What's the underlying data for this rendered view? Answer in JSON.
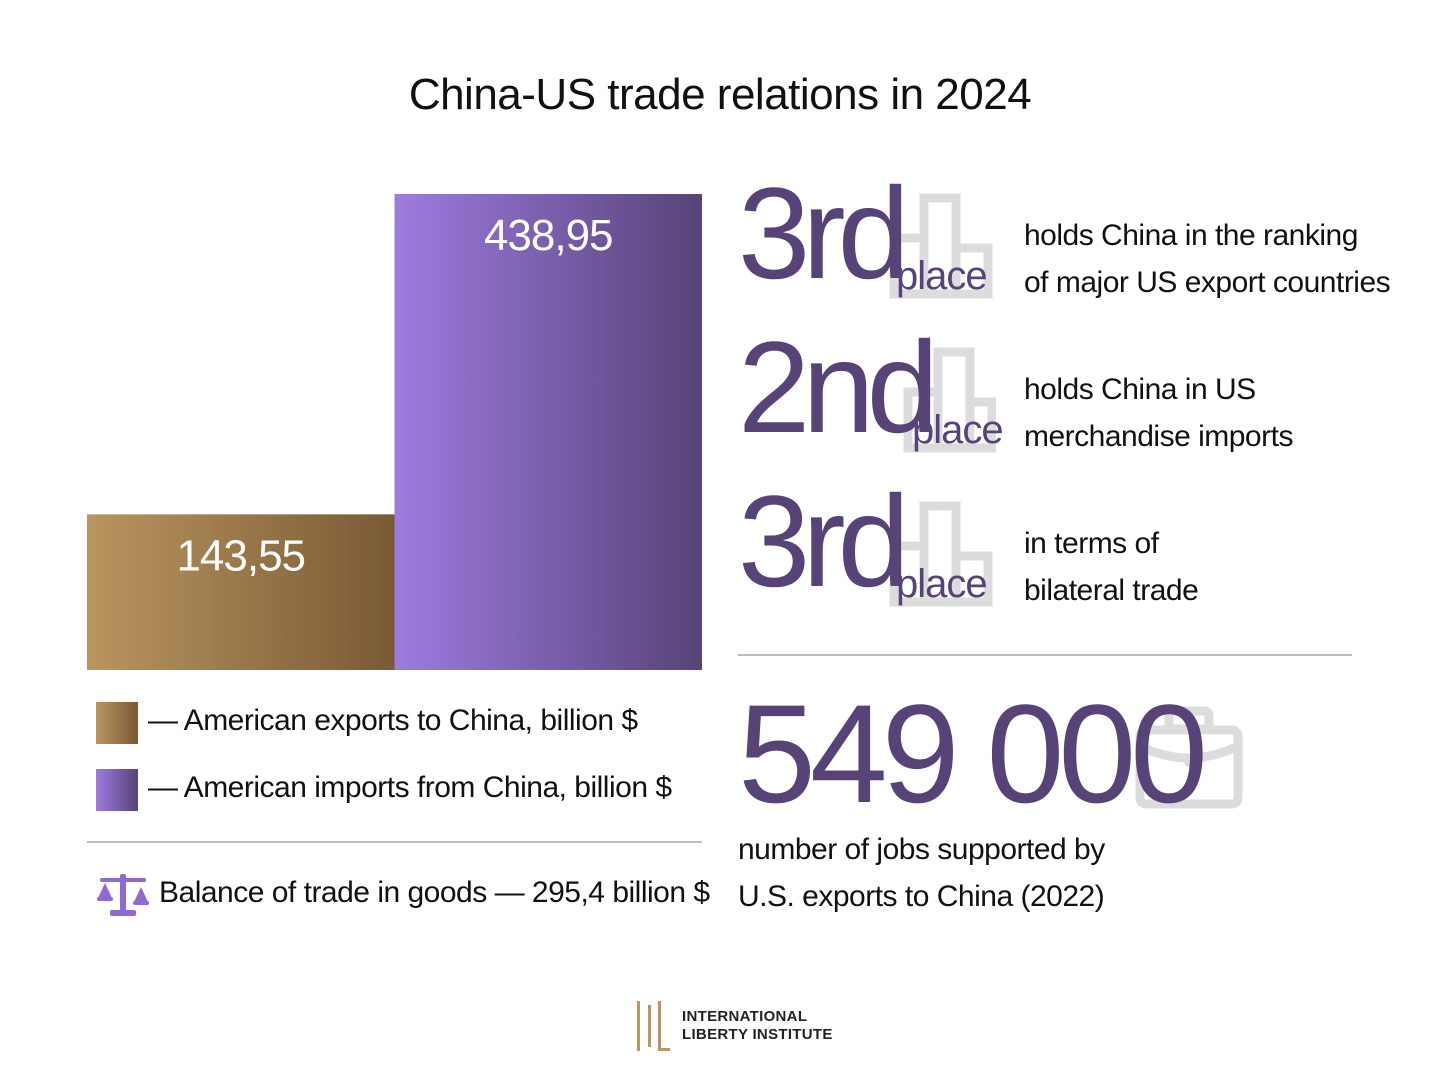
{
  "title": "China-US trade relations in 2024",
  "chart_data": {
    "type": "bar",
    "categories": [
      "American exports to China",
      "American imports from China"
    ],
    "values": [
      143.55,
      438.95
    ],
    "value_labels": [
      "143,55",
      "438,95"
    ],
    "series_colors": [
      [
        "#b9955f",
        "#7a5a35"
      ],
      [
        "#9d7be0",
        "#574378"
      ]
    ],
    "ylim": [
      0,
      438.95
    ],
    "legend": [
      "— American exports to China, billion $",
      "— American imports from China, billion $"
    ],
    "axes_visible": false,
    "grid": false
  },
  "balance": {
    "icon": "balance-scale-icon",
    "text": "Balance of trade in goods — 295,4 billion $"
  },
  "rankings": [
    {
      "number": "3rd",
      "place": "place",
      "line1": "holds China in the ranking",
      "line2": "of major US export countries",
      "icon": "bar-chart-icon"
    },
    {
      "number": "2nd",
      "place": "place",
      "line1": "holds China in US",
      "line2": "merchandise imports",
      "icon": "bar-chart-icon"
    },
    {
      "number": "3rd",
      "place": "place",
      "line1": "in terms of",
      "line2": "bilateral trade",
      "icon": "bar-chart-icon"
    }
  ],
  "jobs": {
    "number": "549 000",
    "line1": "number of jobs supported by",
    "line2": "U.S. exports to China (2022)",
    "icon": "briefcase-icon"
  },
  "logo": {
    "line1": "INTERNATIONAL",
    "line2": "LIBERTY INSTITUTE"
  },
  "colors": {
    "accent": "#574378",
    "gold": "#b9955f",
    "icon_gray": "#dcdcdc",
    "divider": "#bdbdbd"
  }
}
